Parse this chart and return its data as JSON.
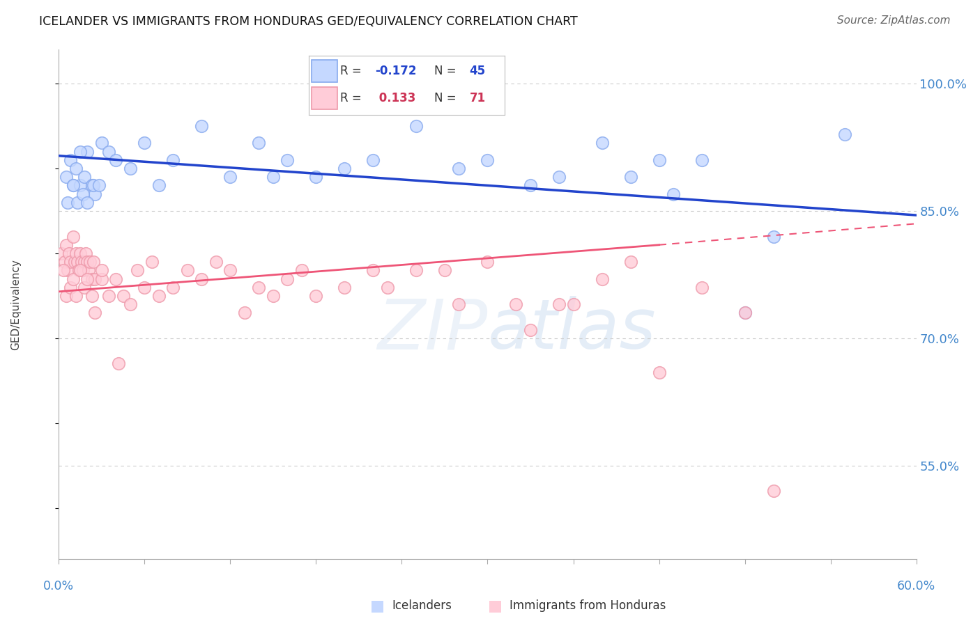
{
  "title": "ICELANDER VS IMMIGRANTS FROM HONDURAS GED/EQUIVALENCY CORRELATION CHART",
  "source": "Source: ZipAtlas.com",
  "ylabel": "GED/Equivalency",
  "y_ticks": [
    55.0,
    70.0,
    85.0,
    100.0
  ],
  "y_tick_labels": [
    "55.0%",
    "70.0%",
    "85.0%",
    "100.0%"
  ],
  "x_range": [
    0.0,
    60.0
  ],
  "y_range": [
    44.0,
    104.0
  ],
  "watermark": "ZIPatlas",
  "blue_scatter_x": [
    0.5,
    0.8,
    1.0,
    1.2,
    1.5,
    1.8,
    2.0,
    2.3,
    2.5,
    3.0,
    0.6,
    1.0,
    1.3,
    1.7,
    2.0,
    2.4,
    3.5,
    4.0,
    5.0,
    6.0,
    7.0,
    8.0,
    10.0,
    12.0,
    14.0,
    16.0,
    20.0,
    22.0,
    25.0,
    28.0,
    30.0,
    33.0,
    35.0,
    38.0,
    40.0,
    42.0,
    45.0,
    48.0,
    50.0,
    55.0,
    1.5,
    2.8,
    15.0,
    18.0,
    43.0
  ],
  "blue_scatter_y": [
    89.0,
    91.0,
    88.0,
    90.0,
    88.0,
    89.0,
    92.0,
    88.0,
    87.0,
    93.0,
    86.0,
    88.0,
    86.0,
    87.0,
    86.0,
    88.0,
    92.0,
    91.0,
    90.0,
    93.0,
    88.0,
    91.0,
    95.0,
    89.0,
    93.0,
    91.0,
    90.0,
    91.0,
    95.0,
    90.0,
    91.0,
    88.0,
    89.0,
    93.0,
    89.0,
    91.0,
    91.0,
    73.0,
    82.0,
    94.0,
    92.0,
    88.0,
    89.0,
    89.0,
    87.0
  ],
  "pink_scatter_x": [
    0.2,
    0.4,
    0.5,
    0.6,
    0.7,
    0.8,
    1.0,
    1.1,
    1.2,
    1.3,
    1.4,
    1.5,
    1.6,
    1.7,
    1.8,
    1.9,
    2.0,
    2.1,
    2.2,
    2.3,
    2.4,
    2.5,
    0.3,
    0.5,
    0.8,
    1.0,
    1.2,
    1.5,
    1.8,
    2.0,
    2.3,
    2.5,
    3.0,
    3.5,
    4.0,
    4.5,
    5.0,
    5.5,
    6.0,
    7.0,
    8.0,
    9.0,
    10.0,
    12.0,
    14.0,
    15.0,
    16.0,
    17.0,
    18.0,
    20.0,
    22.0,
    25.0,
    28.0,
    30.0,
    33.0,
    35.0,
    38.0,
    40.0,
    42.0,
    45.0,
    50.0,
    6.5,
    11.0,
    13.0,
    23.0,
    27.0,
    32.0,
    36.0,
    48.0,
    3.0,
    4.2
  ],
  "pink_scatter_y": [
    80.0,
    79.0,
    81.0,
    78.0,
    80.0,
    79.0,
    82.0,
    79.0,
    80.0,
    79.0,
    78.0,
    80.0,
    79.0,
    78.0,
    79.0,
    80.0,
    79.0,
    78.0,
    79.0,
    77.0,
    79.0,
    77.0,
    78.0,
    75.0,
    76.0,
    77.0,
    75.0,
    78.0,
    76.0,
    77.0,
    75.0,
    73.0,
    77.0,
    75.0,
    77.0,
    75.0,
    74.0,
    78.0,
    76.0,
    75.0,
    76.0,
    78.0,
    77.0,
    78.0,
    76.0,
    75.0,
    77.0,
    78.0,
    75.0,
    76.0,
    78.0,
    78.0,
    74.0,
    79.0,
    71.0,
    74.0,
    77.0,
    79.0,
    66.0,
    76.0,
    52.0,
    79.0,
    79.0,
    73.0,
    76.0,
    78.0,
    74.0,
    74.0,
    73.0,
    78.0,
    67.0
  ],
  "blue_trendline": [
    [
      0.0,
      91.5
    ],
    [
      60.0,
      84.5
    ]
  ],
  "pink_trendline_solid": [
    [
      0.0,
      75.5
    ],
    [
      42.0,
      81.0
    ]
  ],
  "pink_trendline_dashed": [
    [
      42.0,
      81.0
    ],
    [
      60.0,
      83.5
    ]
  ]
}
